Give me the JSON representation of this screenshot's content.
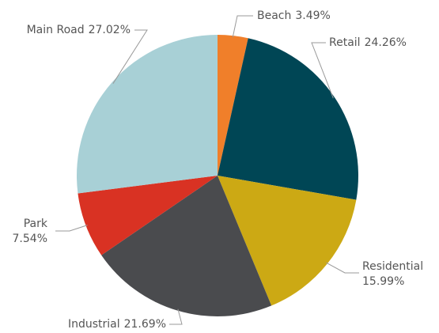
{
  "chart_data": {
    "type": "pie",
    "categories": [
      "Beach",
      "Retail",
      "Residential",
      "Industrial",
      "Park",
      "Main Road"
    ],
    "values": [
      3.49,
      24.26,
      15.99,
      21.69,
      7.54,
      27.02
    ],
    "value_labels": [
      "3.49%",
      "24.26%",
      "15.99%",
      "21.69%",
      "7.54%",
      "27.02%"
    ],
    "colors": [
      "#f07f2a",
      "#004655",
      "#cca914",
      "#4a4b4e",
      "#d93223",
      "#a8d0d6"
    ]
  }
}
